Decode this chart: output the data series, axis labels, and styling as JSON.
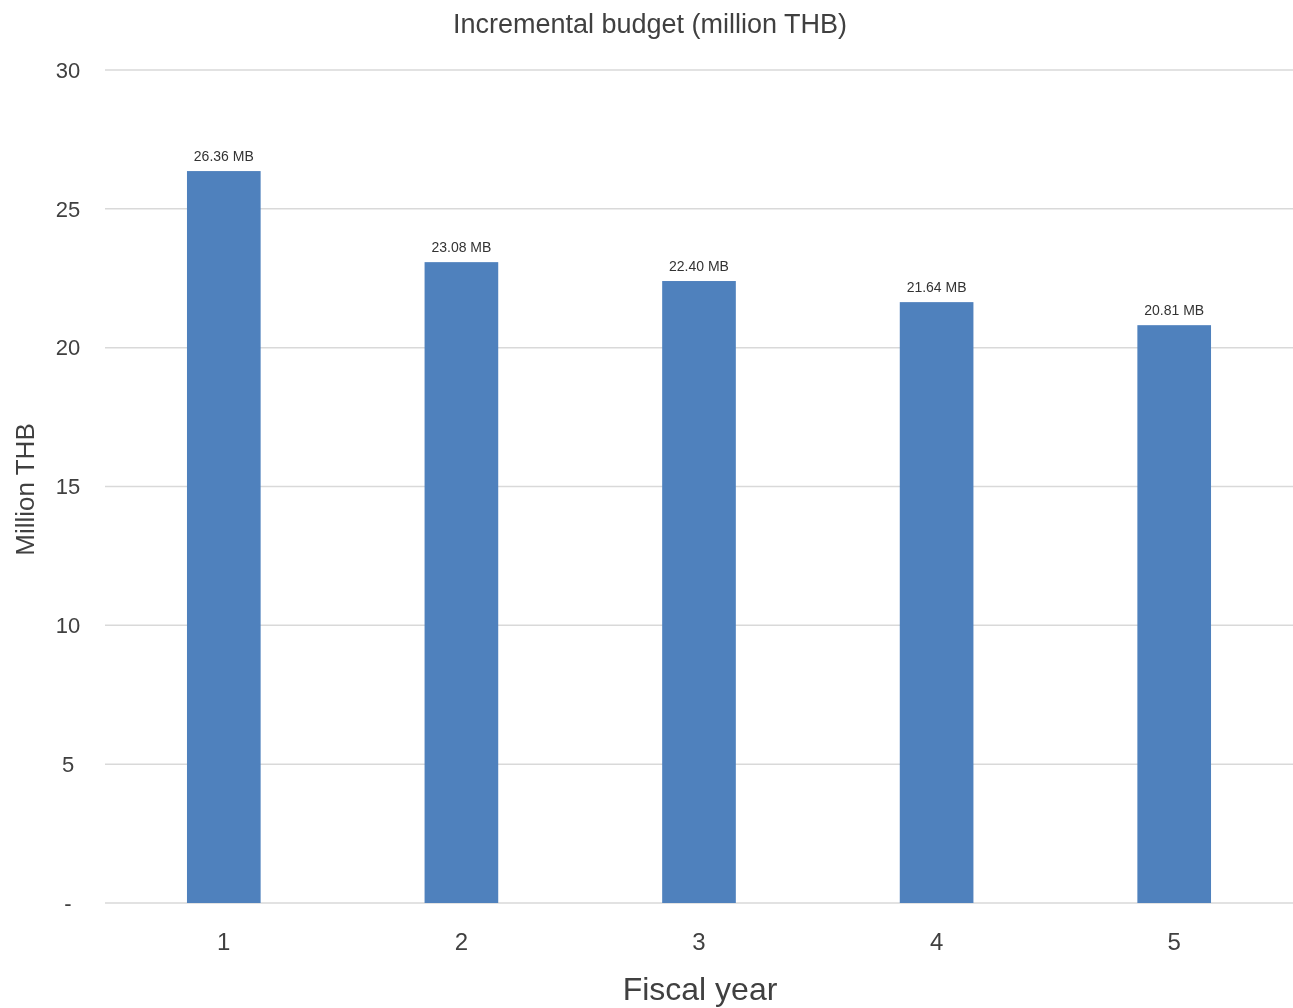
{
  "chart_data": {
    "type": "bar",
    "title": "Incremental budget (million THB)",
    "xlabel": "Fiscal year",
    "ylabel": "Million THB",
    "categories": [
      "1",
      "2",
      "3",
      "4",
      "5"
    ],
    "values": [
      26.36,
      23.08,
      22.4,
      21.64,
      20.81
    ],
    "value_labels": [
      "26.36 MB",
      "23.08 MB",
      "22.40 MB",
      "21.64 MB",
      "20.81 MB"
    ],
    "color": "#4f81bd",
    "ylim": [
      0,
      30
    ],
    "yticks": [
      {
        "value": 0,
        "label": "-"
      },
      5,
      10,
      15,
      20,
      25,
      30
    ],
    "grid": "y"
  }
}
